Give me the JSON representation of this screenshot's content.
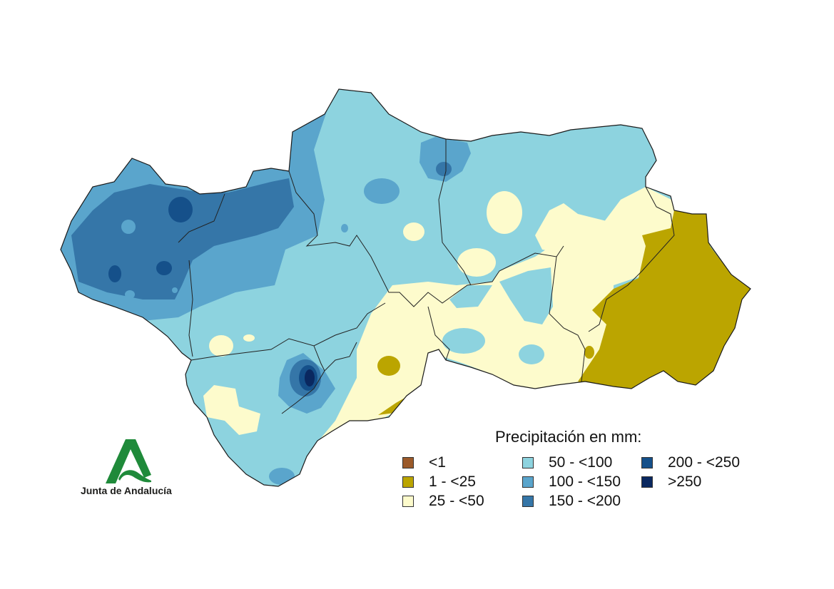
{
  "map": {
    "region": "Andalucía",
    "colors": {
      "outline": "#1a1a1a",
      "c_lt1": "#9b5a2a",
      "c_1_25": "#bba500",
      "c_25_50": "#fdfbcc",
      "c_50_100": "#8dd3df",
      "c_100_150": "#5aa5cc",
      "c_150_200": "#3576a8",
      "c_200_250": "#15508a",
      "c_gt250": "#0a2860"
    }
  },
  "legend": {
    "title": "Precipitación en mm:",
    "items": [
      {
        "label": "<1",
        "color": "#9b5a2a"
      },
      {
        "label": "1 - <25",
        "color": "#bba500"
      },
      {
        "label": "25 - <50",
        "color": "#fdfbcc"
      },
      {
        "label": "50 - <100",
        "color": "#8dd3df"
      },
      {
        "label": "100 - <150",
        "color": "#5aa5cc"
      },
      {
        "label": "150 - <200",
        "color": "#3576a8"
      },
      {
        "label": "200 - <250",
        "color": "#15508a"
      },
      {
        "label": ">250",
        "color": "#0a2860"
      }
    ]
  },
  "logo": {
    "text": "Junta de Andalucía",
    "color": "#1f8a3a"
  }
}
